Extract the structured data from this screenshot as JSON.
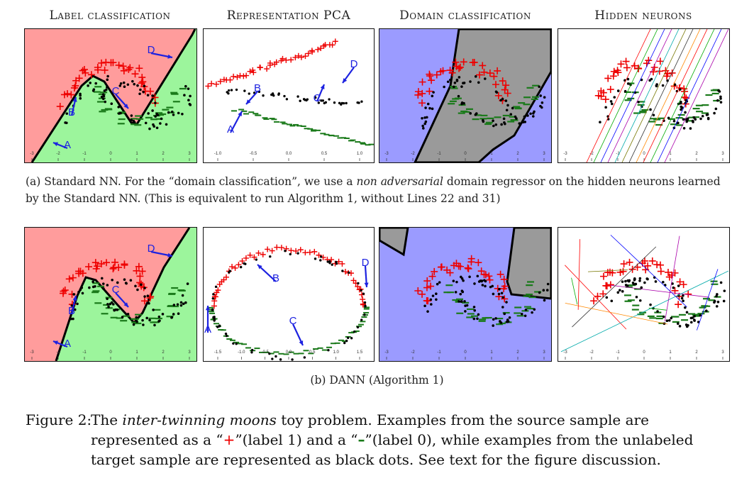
{
  "columns": [
    "Label classification",
    "Representation PCA",
    "Domain classification",
    "Hidden neurons"
  ],
  "rows": [
    {
      "caption_prefix": "(a) Standard NN. For the “domain classification”, we use a ",
      "caption_emph": "non adversarial",
      "caption_suffix": " domain regressor on the hidden neurons learned by the Standard NN. (This is equivalent to run Algorithm 1, without Lines 22 and 31)"
    },
    {
      "caption_full": "(b) DANN (Algorithm 1)"
    }
  ],
  "point_labels": [
    "A",
    "B",
    "C",
    "D"
  ],
  "tick_labels_moons": [
    "-3",
    "-2",
    "-1",
    "0",
    "1",
    "2",
    "3"
  ],
  "tick_labels_pca_a": [
    "-1.0",
    "-0.5",
    "0.0",
    "0.5",
    "1.0"
  ],
  "tick_labels_pca_b": [
    "-1.5",
    "-1.0",
    "-0.5",
    "0.0",
    "0.5",
    "1.0",
    "1.5"
  ],
  "figure_caption": {
    "lead": "Figure 2:",
    "t1": "The ",
    "emph": "inter-twinning moons",
    "t2": " toy problem. Examples from the source sample are represented as a “",
    "plus": "+",
    "t3": "”(label 1) and a “",
    "minus": "–",
    "t4": "”(label 0), while examples from the unlabeled target sample are represented as black dots. See text for the figure discussion."
  },
  "colors": {
    "label1_region": "#ff9c9c",
    "label0_region": "#9cf59c",
    "domain_source_region": "#9b9bff",
    "domain_target_region": "#9a9a9a",
    "plus": "#ee0000",
    "minus": "#1a7a1a",
    "arrow": "#1d22e0"
  }
}
